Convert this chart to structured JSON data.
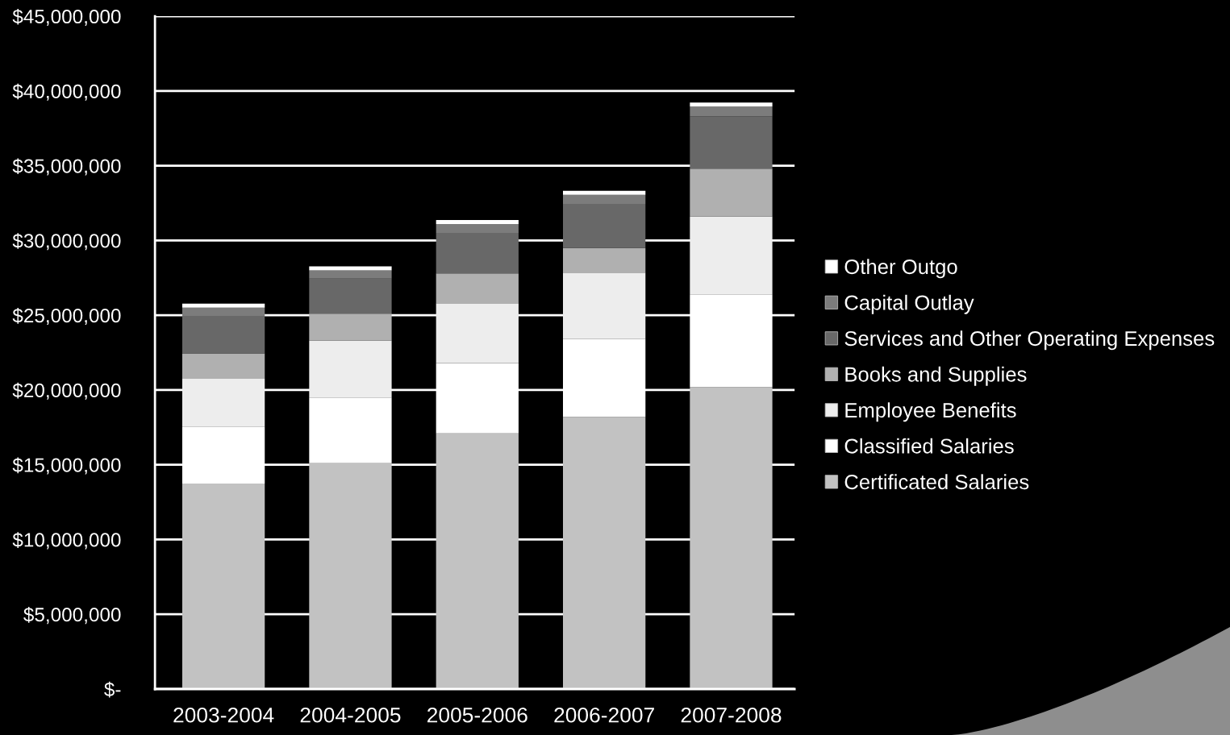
{
  "chart_data": {
    "type": "bar",
    "stacked": true,
    "categories": [
      "2003-2004",
      "2004-2005",
      "2005-2006",
      "2006-2007",
      "2007-2008"
    ],
    "series": [
      {
        "name": "Certificated Salaries",
        "color": "#c2c2c2",
        "values": [
          13750000,
          15100000,
          17100000,
          18200000,
          20200000
        ]
      },
      {
        "name": "Classified Salaries",
        "color": "#ffffff",
        "values": [
          3800000,
          4400000,
          4700000,
          5200000,
          6200000
        ]
      },
      {
        "name": "Employee Benefits",
        "color": "#ededed",
        "values": [
          3200000,
          3800000,
          4000000,
          4450000,
          5200000
        ]
      },
      {
        "name": "Books and Supplies",
        "color": "#b0b0b0",
        "values": [
          1700000,
          1800000,
          2000000,
          1650000,
          3200000
        ]
      },
      {
        "name": "Services and Other Operating Expenses",
        "color": "#686868",
        "values": [
          2500000,
          2350000,
          2700000,
          2950000,
          3500000
        ]
      },
      {
        "name": "Capital Outlay",
        "color": "#7c7c7c",
        "values": [
          550000,
          550000,
          600000,
          600000,
          650000
        ]
      },
      {
        "name": "Other Outgo",
        "color": "#ffffff",
        "values": [
          270000,
          270000,
          270000,
          270000,
          270000
        ]
      }
    ],
    "ylim": [
      0,
      45000000
    ],
    "yticks": [
      {
        "value": 0,
        "label": "$-"
      },
      {
        "value": 5000000,
        "label": "$5,000,000"
      },
      {
        "value": 10000000,
        "label": "$10,000,000"
      },
      {
        "value": 15000000,
        "label": "$15,000,000"
      },
      {
        "value": 20000000,
        "label": "$20,000,000"
      },
      {
        "value": 25000000,
        "label": "$25,000,000"
      },
      {
        "value": 30000000,
        "label": "$30,000,000"
      },
      {
        "value": 35000000,
        "label": "$35,000,000"
      },
      {
        "value": 40000000,
        "label": "$40,000,000"
      },
      {
        "value": 45000000,
        "label": "$45,000,000"
      }
    ],
    "grid": "y",
    "legend": "right"
  }
}
